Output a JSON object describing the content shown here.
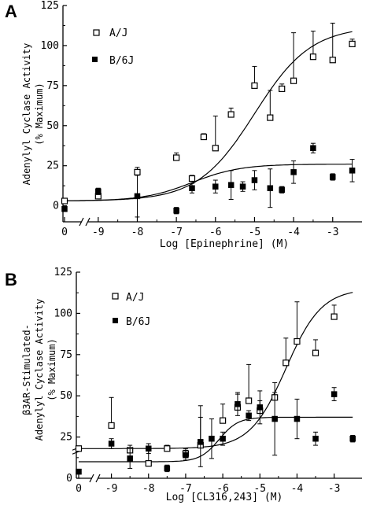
{
  "chart_data": [
    {
      "panel_label": "A",
      "type": "scatter",
      "xlabel": "Log [Epinephrine] (M)",
      "ylabel_lines": [
        "Adenylyl Cyclase Activity",
        "(% Maximum)"
      ],
      "ylim": [
        -10,
        125
      ],
      "xlim": [
        -9.5,
        -2.25
      ],
      "x_break": true,
      "yticks": [
        0,
        25,
        50,
        75,
        100,
        125
      ],
      "xtick_labels": [
        "0",
        "-9",
        "-8",
        "-7",
        "-6",
        "-5",
        "-4",
        "-3"
      ],
      "legend_position": "top-left",
      "series": [
        {
          "name": "A/J",
          "marker": "open-square",
          "zero_point": {
            "x_label": "0",
            "y": 3
          },
          "points": [
            {
              "x": -9.0,
              "y": 6,
              "err": 3
            },
            {
              "x": -8.0,
              "y": 21,
              "err": 3
            },
            {
              "x": -7.0,
              "y": 30,
              "err": 3
            },
            {
              "x": -6.6,
              "y": 17,
              "err": 2
            },
            {
              "x": -6.3,
              "y": 43,
              "err": 2
            },
            {
              "x": -6.0,
              "y": 36,
              "err": 20
            },
            {
              "x": -5.6,
              "y": 57,
              "err": 4
            },
            {
              "x": -5.0,
              "y": 75,
              "err": 12
            },
            {
              "x": -4.6,
              "y": 55,
              "err": 17
            },
            {
              "x": -4.3,
              "y": 73,
              "err": 3
            },
            {
              "x": -4.0,
              "y": 78,
              "err": 30
            },
            {
              "x": -3.5,
              "y": 93,
              "err": 16
            },
            {
              "x": -3.0,
              "y": 91,
              "err": 23
            },
            {
              "x": -2.5,
              "y": 101,
              "err": 3
            }
          ]
        },
        {
          "name": "B/6J",
          "marker": "filled-square",
          "zero_point": {
            "x_label": "0",
            "y": -2
          },
          "points": [
            {
              "x": -9.0,
              "y": 9,
              "err": 2
            },
            {
              "x": -8.0,
              "y": 6,
              "err": 13
            },
            {
              "x": -7.0,
              "y": -3,
              "err": 2
            },
            {
              "x": -6.6,
              "y": 11,
              "err": 3
            },
            {
              "x": -6.0,
              "y": 12,
              "err": 4
            },
            {
              "x": -5.6,
              "y": 13,
              "err": 9
            },
            {
              "x": -5.3,
              "y": 12,
              "err": 3
            },
            {
              "x": -5.0,
              "y": 16,
              "err": 6
            },
            {
              "x": -4.6,
              "y": 11,
              "err": 12
            },
            {
              "x": -4.3,
              "y": 10,
              "err": 2
            },
            {
              "x": -4.0,
              "y": 21,
              "err": 7
            },
            {
              "x": -3.5,
              "y": 36,
              "err": 3
            },
            {
              "x": -3.0,
              "y": 18,
              "err": 2
            },
            {
              "x": -2.5,
              "y": 22,
              "err": 7
            }
          ]
        }
      ],
      "fit_curves": [
        {
          "series": "A/J",
          "bottom": 3,
          "top": 112,
          "log_ec50": -5.0,
          "hill": 0.6
        },
        {
          "series": "B/6J",
          "bottom": 3,
          "top": 26,
          "log_ec50": -6.6,
          "hill": 0.7
        }
      ]
    },
    {
      "panel_label": "B",
      "type": "scatter",
      "xlabel": "Log [CL316,243] (M)",
      "ylabel_lines": [
        "β3AR-Stimulated-",
        "Adenylyl Cyclase Activity",
        "(% Maximum)"
      ],
      "ylim": [
        0,
        125
      ],
      "xlim": [
        -9.5,
        -2.25
      ],
      "x_break": true,
      "y_break": true,
      "yticks": [
        0,
        25,
        50,
        75,
        100,
        125
      ],
      "xtick_labels": [
        "0",
        "-9",
        "-8",
        "-7",
        "-6",
        "-5",
        "-4",
        "-3"
      ],
      "legend_position": "top-left",
      "series": [
        {
          "name": "A/J",
          "marker": "open-square",
          "zero_point": {
            "x_label": "0",
            "y": 18
          },
          "points": [
            {
              "x": -9.0,
              "y": 32,
              "err": 17
            },
            {
              "x": -8.5,
              "y": 17,
              "err": 3
            },
            {
              "x": -8.0,
              "y": 9,
              "err": 8
            },
            {
              "x": -7.5,
              "y": 18,
              "err": 2
            },
            {
              "x": -7.0,
              "y": 15,
              "err": 3
            },
            {
              "x": -6.6,
              "y": 20,
              "err": 24
            },
            {
              "x": -6.0,
              "y": 35,
              "err": 10
            },
            {
              "x": -5.6,
              "y": 43,
              "err": 8
            },
            {
              "x": -5.3,
              "y": 47,
              "err": 22
            },
            {
              "x": -5.0,
              "y": 41,
              "err": 6
            },
            {
              "x": -4.6,
              "y": 49,
              "err": 3
            },
            {
              "x": -4.3,
              "y": 70,
              "err": 15
            },
            {
              "x": -4.0,
              "y": 83,
              "err": 24
            },
            {
              "x": -3.5,
              "y": 76,
              "err": 8
            },
            {
              "x": -3.0,
              "y": 98,
              "err": 7
            }
          ]
        },
        {
          "name": "B/6J",
          "marker": "filled-square",
          "zero_point": {
            "x_label": "0",
            "y": 4
          },
          "points": [
            {
              "x": -9.0,
              "y": 21,
              "err": 3
            },
            {
              "x": -8.5,
              "y": 12,
              "err": 6
            },
            {
              "x": -8.0,
              "y": 18,
              "err": 3
            },
            {
              "x": -7.5,
              "y": 6,
              "err": 2
            },
            {
              "x": -7.0,
              "y": 14,
              "err": 3
            },
            {
              "x": -6.6,
              "y": 22,
              "err": 15
            },
            {
              "x": -6.3,
              "y": 24,
              "err": 12
            },
            {
              "x": -6.0,
              "y": 24,
              "err": 4
            },
            {
              "x": -5.6,
              "y": 45,
              "err": 7
            },
            {
              "x": -5.3,
              "y": 38,
              "err": 3
            },
            {
              "x": -5.0,
              "y": 43,
              "err": 10
            },
            {
              "x": -4.6,
              "y": 36,
              "err": 22
            },
            {
              "x": -4.0,
              "y": 36,
              "err": 12
            },
            {
              "x": -3.5,
              "y": 24,
              "err": 4
            },
            {
              "x": -3.0,
              "y": 51,
              "err": 4
            },
            {
              "x": -2.5,
              "y": 24,
              "err": 2
            }
          ]
        }
      ],
      "fit_curves": [
        {
          "series": "A/J",
          "bottom": 18,
          "top": 115,
          "log_ec50": -4.3,
          "hill": 0.9
        },
        {
          "series": "B/6J",
          "bottom": 10,
          "top": 37,
          "log_ec50": -6.1,
          "hill": 1.7
        }
      ]
    }
  ]
}
